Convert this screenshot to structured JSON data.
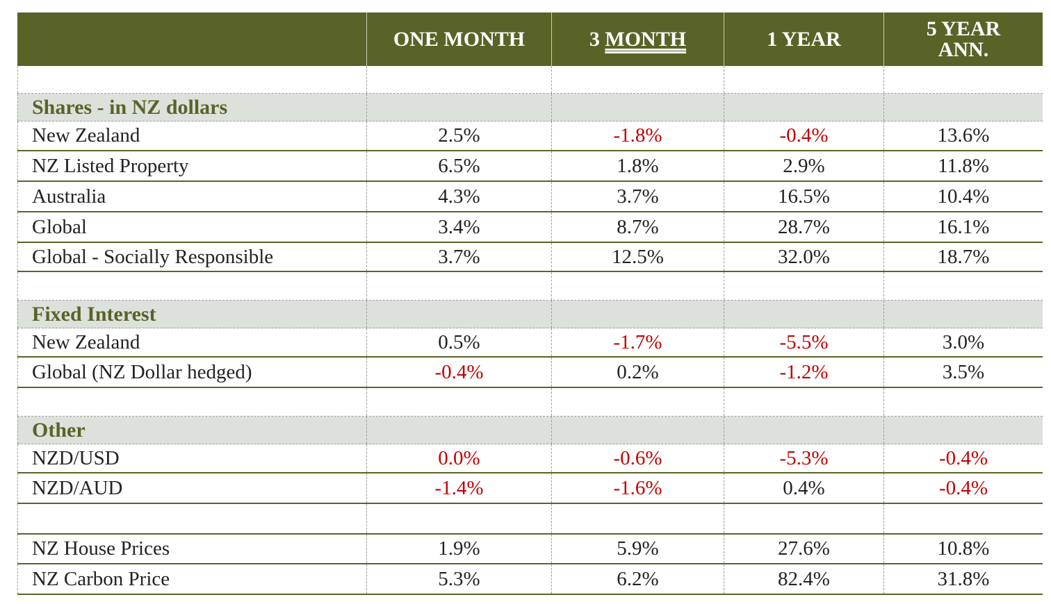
{
  "header": {
    "col1": "ONE MONTH",
    "col2_prefix": "3 ",
    "col2_underlined": "MONTH",
    "col3": "1 YEAR",
    "col4_line1": "5 YEAR",
    "col4_line2": "ANN."
  },
  "sections": {
    "shares": "Shares - in NZ dollars",
    "fixed": "Fixed Interest",
    "other": "Other"
  },
  "rows": [
    {
      "label": "New Zealand",
      "v": [
        "2.5%",
        "-1.8%",
        "-0.4%",
        "13.6%"
      ]
    },
    {
      "label": "NZ Listed Property",
      "v": [
        "6.5%",
        "1.8%",
        "2.9%",
        "11.8%"
      ]
    },
    {
      "label": "Australia",
      "v": [
        "4.3%",
        "3.7%",
        "16.5%",
        "10.4%"
      ]
    },
    {
      "label": "Global",
      "v": [
        "3.4%",
        "8.7%",
        "28.7%",
        "16.1%"
      ]
    },
    {
      "label": "Global - Socially Responsible",
      "v": [
        "3.7%",
        "12.5%",
        "32.0%",
        "18.7%"
      ]
    },
    {
      "label": "New Zealand",
      "v": [
        "0.5%",
        "-1.7%",
        "-5.5%",
        "3.0%"
      ]
    },
    {
      "label": "Global (NZ Dollar hedged)",
      "v": [
        "-0.4%",
        "0.2%",
        "-1.2%",
        "3.5%"
      ]
    },
    {
      "label": "NZD/USD",
      "v": [
        "0.0%",
        "-0.6%",
        "-5.3%",
        "-0.4%"
      ]
    },
    {
      "label": "NZD/AUD",
      "v": [
        "-1.4%",
        "-1.6%",
        "0.4%",
        "-0.4%"
      ]
    },
    {
      "label": "NZ House Prices",
      "v": [
        "1.9%",
        "5.9%",
        "27.6%",
        "10.8%"
      ]
    },
    {
      "label": "NZ Carbon Price",
      "v": [
        "5.3%",
        "6.2%",
        "82.4%",
        "31.8%"
      ]
    }
  ],
  "colors": {
    "header_bg": "#5a6327",
    "section_bg": "#dde1dc",
    "negative": "#c00000"
  }
}
